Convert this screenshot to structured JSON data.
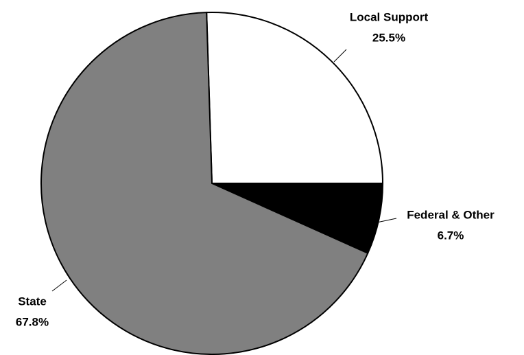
{
  "chart_data": {
    "type": "pie",
    "categories": [
      "Local Support",
      "Federal & Other",
      "State"
    ],
    "values": [
      25.5,
      6.7,
      67.8
    ],
    "value_labels": [
      "25.5%",
      "6.7%",
      "67.8%"
    ],
    "colors": [
      "#ffffff",
      "#000000",
      "#808080"
    ]
  }
}
